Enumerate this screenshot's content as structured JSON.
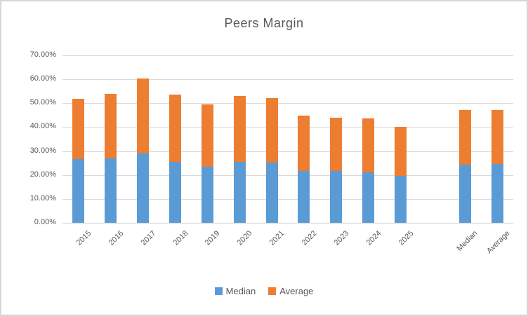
{
  "chart_data": {
    "type": "bar",
    "stacked": true,
    "title": "Peers Margin",
    "unit": "%",
    "categories": [
      "2015",
      "2016",
      "2017",
      "2018",
      "2019",
      "2020",
      "2021",
      "2022",
      "2023",
      "2024",
      "2025",
      "",
      "Median",
      "Average"
    ],
    "series": [
      {
        "name": "Median",
        "color": "#5B9BD5",
        "values": [
          26.7,
          26.9,
          28.9,
          25.4,
          23.3,
          25.4,
          25.2,
          21.8,
          21.7,
          21.2,
          19.7,
          null,
          24.3,
          24.7
        ]
      },
      {
        "name": "Average",
        "color": "#ED7D31",
        "values": [
          25.1,
          27.1,
          31.3,
          28.3,
          26.1,
          27.5,
          27.0,
          22.9,
          22.2,
          22.3,
          20.4,
          null,
          23.0,
          22.6
        ]
      }
    ],
    "stack_totals": [
      51.8,
      54.0,
      60.2,
      53.7,
      49.4,
      52.9,
      52.2,
      44.7,
      43.9,
      43.5,
      40.1,
      null,
      47.3,
      47.3
    ],
    "y_axis": {
      "min": 0,
      "max": 70,
      "step": 10,
      "tick_labels": [
        "0.00%",
        "10.00%",
        "20.00%",
        "30.00%",
        "40.00%",
        "50.00%",
        "60.00%",
        "70.00%"
      ]
    },
    "x_axis": {
      "label_rotation_deg": -45
    },
    "grid": true,
    "legend": {
      "position": "bottom",
      "entries": [
        "Median",
        "Average"
      ]
    },
    "colors": {
      "text": "#595959",
      "gridline": "#D9D9D9",
      "frame_border": "#D7D7D7",
      "background": "#FFFFFF"
    }
  }
}
